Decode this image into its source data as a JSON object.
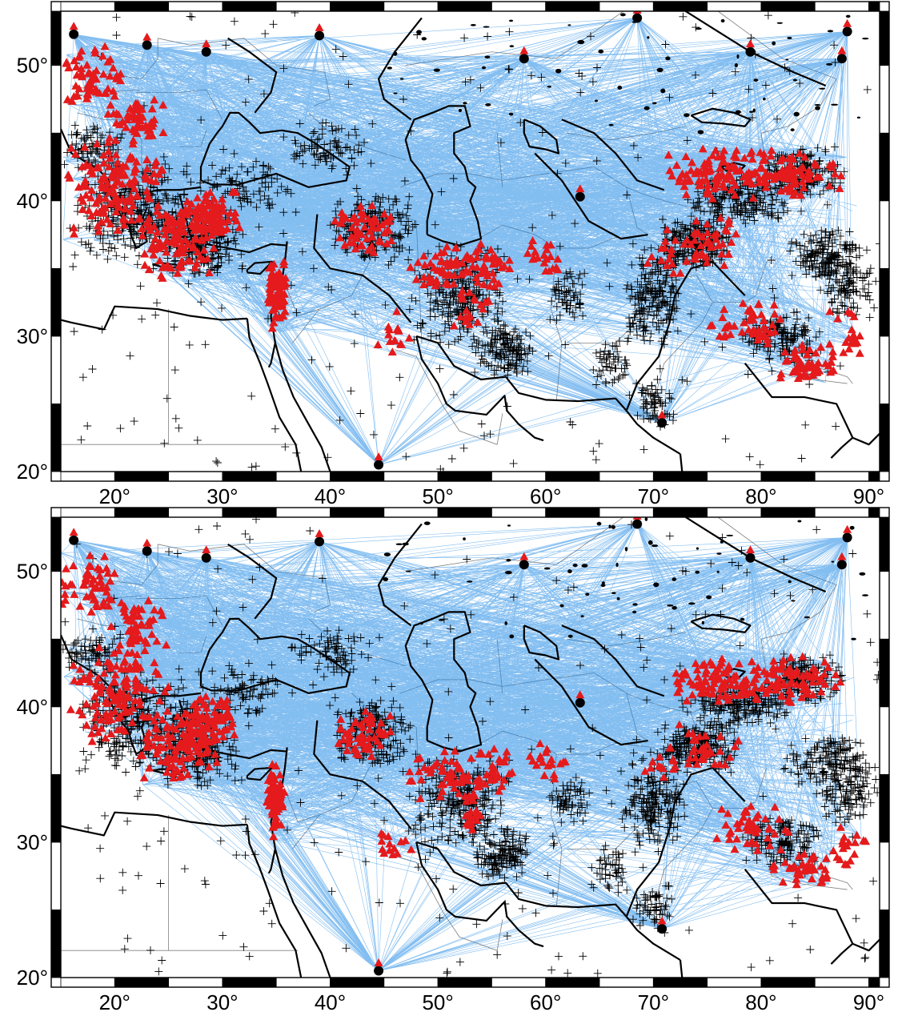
{
  "maps": [
    {
      "id": "top",
      "lon_range": [
        15,
        91
      ],
      "lat_range": [
        20,
        54
      ],
      "lon_ticks": [
        "20°",
        "30°",
        "40°",
        "50°",
        "60°",
        "70°",
        "80°",
        "90°"
      ],
      "lat_ticks": [
        "20°",
        "30°",
        "40°",
        "50°"
      ]
    },
    {
      "id": "bottom",
      "lon_range": [
        15,
        91
      ],
      "lat_range": [
        20,
        54
      ],
      "lon_ticks": [
        "20°",
        "30°",
        "40°",
        "50°",
        "60°",
        "70°",
        "80°",
        "90°"
      ],
      "lat_ticks": [
        "20°",
        "30°",
        "40°",
        "50°"
      ]
    }
  ],
  "legend_colors": {
    "ray_paths": "#1e88e5",
    "stations": "#e41a1c",
    "events": "#000000",
    "coastline": "#000000",
    "borders": "#808080"
  },
  "symbols": {
    "stations": "triangle",
    "events": "cross"
  }
}
